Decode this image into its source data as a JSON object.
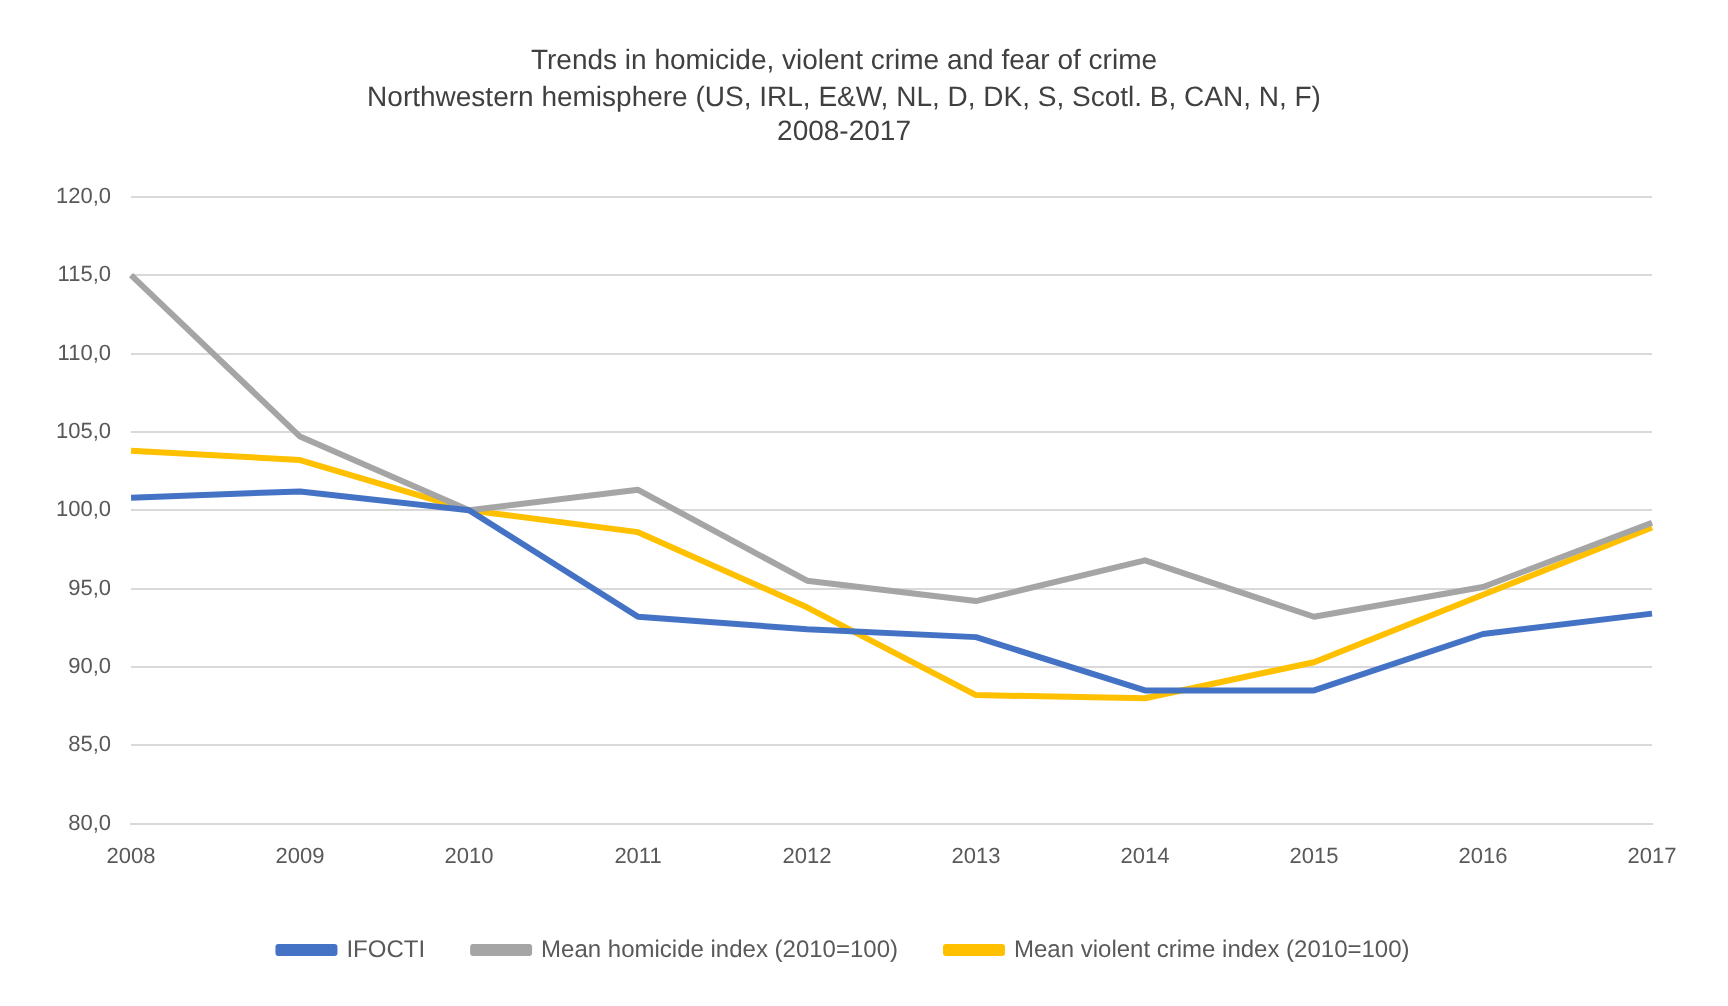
{
  "chart_data": {
    "type": "line",
    "title": "Trends in homicide, violent crime and fear of crime",
    "subtitle": "Northwestern hemisphere (US, IRL, E&W, NL, D, DK, S, Scotl. B, CAN, N, F)",
    "annotations": [
      "2008-2017"
    ],
    "categories": [
      "2008",
      "2009",
      "2010",
      "2011",
      "2012",
      "2013",
      "2014",
      "2015",
      "2016",
      "2017"
    ],
    "series": [
      {
        "name": "IFOCTI",
        "color": "#4472c4",
        "values": [
          100.8,
          101.2,
          100,
          93.2,
          92.4,
          91.9,
          88.5,
          88.5,
          92.1,
          93.4
        ]
      },
      {
        "name": "Mean homicide index (2010=100)",
        "color": "#a5a5a5",
        "values": [
          115.0,
          104.7,
          100,
          101.3,
          95.5,
          94.2,
          96.8,
          93.2,
          95.1,
          99.2
        ]
      },
      {
        "name": "Mean violent crime index (2010=100)",
        "color": "#ffc000",
        "values": [
          103.8,
          103.2,
          100,
          98.6,
          93.8,
          88.2,
          88.0,
          90.3,
          94.6,
          98.9
        ]
      }
    ],
    "ylim": [
      80,
      120
    ],
    "yticks": [
      {
        "value": 80,
        "label": "80,0"
      },
      {
        "value": 85,
        "label": "85,0"
      },
      {
        "value": 90,
        "label": "90,0"
      },
      {
        "value": 95,
        "label": "95,0"
      },
      {
        "value": 100,
        "label": "100,0"
      },
      {
        "value": 105,
        "label": "105,0"
      },
      {
        "value": 110,
        "label": "110,0"
      },
      {
        "value": 115,
        "label": "115,0"
      },
      {
        "value": 120,
        "label": "120,0"
      }
    ],
    "grid": "y",
    "legend": "bottom",
    "marker": "none",
    "line_style": "solid"
  }
}
